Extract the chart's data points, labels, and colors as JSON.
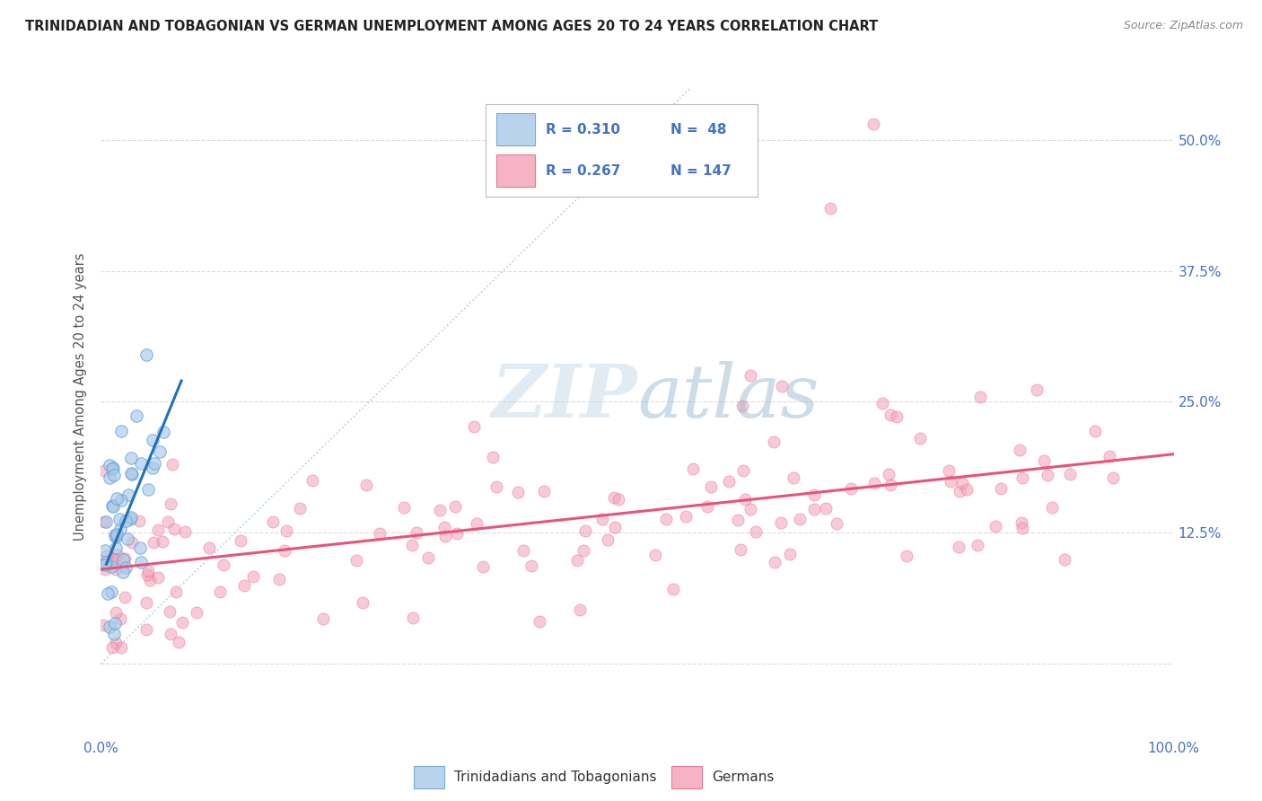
{
  "title": "TRINIDADIAN AND TOBAGONIAN VS GERMAN UNEMPLOYMENT AMONG AGES 20 TO 24 YEARS CORRELATION CHART",
  "source": "Source: ZipAtlas.com",
  "ylabel": "Unemployment Among Ages 20 to 24 years",
  "xlim": [
    0.0,
    1.0
  ],
  "ylim": [
    -0.07,
    0.58
  ],
  "y_tick_values": [
    0.0,
    0.125,
    0.25,
    0.375,
    0.5
  ],
  "y_tick_labels": [
    "",
    "12.5%",
    "25.0%",
    "37.5%",
    "50.0%"
  ],
  "blue_color": "#a8c8e8",
  "blue_edge_color": "#5b9bd5",
  "pink_color": "#f4a0b8",
  "pink_edge_color": "#e06080",
  "blue_line_color": "#2171b5",
  "pink_line_color": "#e8537a",
  "diagonal_color": "#a8c8e8",
  "legend_text_color": "#4472c4",
  "tick_label_color": "#4472c4",
  "axis_label_color": "#555555",
  "title_color": "#222222",
  "background_color": "#ffffff",
  "grid_color": "#d8d8d8",
  "pink_trendline_x": [
    0.0,
    1.0
  ],
  "pink_trendline_y": [
    0.09,
    0.2
  ],
  "blue_trendline_x": [
    0.005,
    0.075
  ],
  "blue_trendline_y": [
    0.095,
    0.27
  ]
}
